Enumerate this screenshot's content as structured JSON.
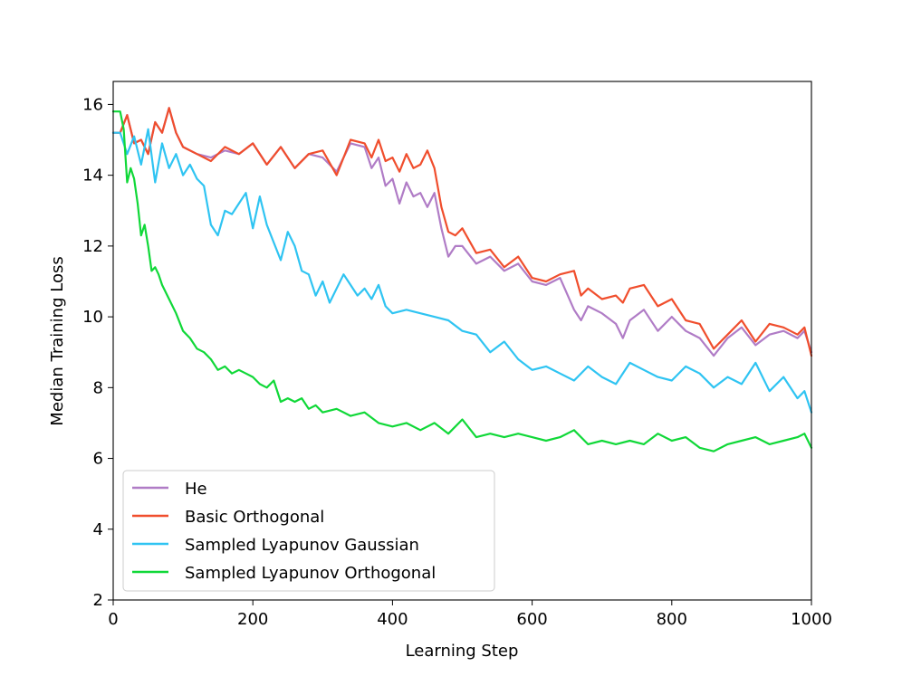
{
  "chart_data": {
    "type": "line",
    "title": "",
    "xlabel": "Learning Step",
    "ylabel": "Median Training Loss",
    "xlim": [
      0,
      1000
    ],
    "ylim": [
      2,
      16.65
    ],
    "xticks": [
      0,
      200,
      400,
      600,
      800,
      1000
    ],
    "yticks": [
      2,
      4,
      6,
      8,
      10,
      12,
      14,
      16
    ],
    "grid": false,
    "legend_position": "lower-left",
    "series": [
      {
        "name": "He",
        "color": "#b07cc6",
        "x": [
          0,
          10,
          20,
          30,
          40,
          50,
          60,
          70,
          80,
          90,
          100,
          120,
          140,
          160,
          180,
          200,
          220,
          240,
          260,
          280,
          300,
          320,
          340,
          360,
          370,
          380,
          390,
          400,
          410,
          420,
          430,
          440,
          450,
          460,
          470,
          480,
          490,
          500,
          520,
          540,
          560,
          580,
          600,
          620,
          640,
          660,
          670,
          680,
          700,
          720,
          730,
          740,
          760,
          780,
          800,
          820,
          840,
          860,
          880,
          900,
          920,
          940,
          960,
          980,
          990,
          1000
        ],
        "y": [
          15.2,
          15.2,
          15.7,
          14.9,
          15.0,
          14.6,
          15.5,
          15.2,
          15.9,
          15.2,
          14.8,
          14.6,
          14.5,
          14.7,
          14.6,
          14.9,
          14.3,
          14.8,
          14.2,
          14.6,
          14.5,
          14.1,
          14.9,
          14.8,
          14.2,
          14.5,
          13.7,
          13.9,
          13.2,
          13.8,
          13.4,
          13.5,
          13.1,
          13.5,
          12.5,
          11.7,
          12.0,
          12.0,
          11.5,
          11.7,
          11.3,
          11.5,
          11.0,
          10.9,
          11.1,
          10.2,
          9.9,
          10.3,
          10.1,
          9.8,
          9.4,
          9.9,
          10.2,
          9.6,
          10.0,
          9.6,
          9.4,
          8.9,
          9.4,
          9.7,
          9.2,
          9.5,
          9.6,
          9.4,
          9.6,
          9.0
        ]
      },
      {
        "name": "Basic Orthogonal",
        "color": "#f04e2d",
        "x": [
          0,
          10,
          20,
          30,
          40,
          50,
          60,
          70,
          80,
          90,
          100,
          120,
          140,
          160,
          180,
          200,
          220,
          240,
          260,
          280,
          300,
          320,
          340,
          360,
          370,
          380,
          390,
          400,
          410,
          420,
          430,
          440,
          450,
          460,
          470,
          480,
          490,
          500,
          520,
          540,
          560,
          580,
          600,
          620,
          640,
          660,
          670,
          680,
          700,
          720,
          730,
          740,
          760,
          780,
          800,
          820,
          840,
          860,
          880,
          900,
          920,
          940,
          960,
          980,
          990,
          1000
        ],
        "y": [
          15.2,
          15.2,
          15.7,
          14.9,
          15.0,
          14.6,
          15.5,
          15.2,
          15.9,
          15.2,
          14.8,
          14.6,
          14.4,
          14.8,
          14.6,
          14.9,
          14.3,
          14.8,
          14.2,
          14.6,
          14.7,
          14.0,
          15.0,
          14.9,
          14.5,
          15.0,
          14.4,
          14.5,
          14.1,
          14.6,
          14.2,
          14.3,
          14.7,
          14.2,
          13.1,
          12.4,
          12.3,
          12.5,
          11.8,
          11.9,
          11.4,
          11.7,
          11.1,
          11.0,
          11.2,
          11.3,
          10.6,
          10.8,
          10.5,
          10.6,
          10.4,
          10.8,
          10.9,
          10.3,
          10.5,
          9.9,
          9.8,
          9.1,
          9.5,
          9.9,
          9.3,
          9.8,
          9.7,
          9.5,
          9.7,
          8.9
        ]
      },
      {
        "name": "Sampled Lyapunov Gaussian",
        "color": "#2fc4f2",
        "x": [
          0,
          10,
          20,
          30,
          40,
          50,
          60,
          70,
          80,
          90,
          100,
          110,
          120,
          130,
          140,
          150,
          160,
          170,
          180,
          190,
          200,
          210,
          220,
          230,
          240,
          250,
          260,
          270,
          280,
          290,
          300,
          310,
          320,
          330,
          340,
          350,
          360,
          370,
          380,
          390,
          400,
          420,
          440,
          460,
          480,
          500,
          520,
          540,
          560,
          580,
          600,
          620,
          640,
          660,
          680,
          700,
          720,
          740,
          760,
          780,
          800,
          820,
          840,
          860,
          880,
          900,
          920,
          940,
          960,
          980,
          990,
          1000
        ],
        "y": [
          15.2,
          15.2,
          14.6,
          15.1,
          14.3,
          15.3,
          13.8,
          14.9,
          14.2,
          14.6,
          14.0,
          14.3,
          13.9,
          13.7,
          12.6,
          12.3,
          13.0,
          12.9,
          13.2,
          13.5,
          12.5,
          13.4,
          12.6,
          12.1,
          11.6,
          12.4,
          12.0,
          11.3,
          11.2,
          10.6,
          11.0,
          10.4,
          10.8,
          11.2,
          10.9,
          10.6,
          10.8,
          10.5,
          10.9,
          10.3,
          10.1,
          10.2,
          10.1,
          10.0,
          9.9,
          9.6,
          9.5,
          9.0,
          9.3,
          8.8,
          8.5,
          8.6,
          8.4,
          8.2,
          8.6,
          8.3,
          8.1,
          8.7,
          8.5,
          8.3,
          8.2,
          8.6,
          8.4,
          8.0,
          8.3,
          8.1,
          8.7,
          7.9,
          8.3,
          7.7,
          7.9,
          7.3
        ]
      },
      {
        "name": "Sampled Lyapunov Orthogonal",
        "color": "#10d838",
        "x": [
          0,
          5,
          10,
          15,
          20,
          25,
          30,
          35,
          40,
          45,
          50,
          55,
          60,
          65,
          70,
          80,
          90,
          100,
          110,
          120,
          130,
          140,
          150,
          160,
          170,
          180,
          190,
          200,
          210,
          220,
          230,
          240,
          250,
          260,
          270,
          280,
          290,
          300,
          320,
          340,
          360,
          380,
          400,
          420,
          440,
          460,
          480,
          500,
          520,
          540,
          560,
          580,
          600,
          620,
          640,
          660,
          680,
          700,
          720,
          740,
          760,
          780,
          800,
          820,
          840,
          860,
          880,
          900,
          920,
          940,
          960,
          980,
          990,
          1000
        ],
        "y": [
          15.8,
          15.8,
          15.8,
          15.3,
          13.8,
          14.2,
          13.9,
          13.2,
          12.3,
          12.6,
          12.0,
          11.3,
          11.4,
          11.2,
          10.9,
          10.5,
          10.1,
          9.6,
          9.4,
          9.1,
          9.0,
          8.8,
          8.5,
          8.6,
          8.4,
          8.5,
          8.4,
          8.3,
          8.1,
          8.0,
          8.2,
          7.6,
          7.7,
          7.6,
          7.7,
          7.4,
          7.5,
          7.3,
          7.4,
          7.2,
          7.3,
          7.0,
          6.9,
          7.0,
          6.8,
          7.0,
          6.7,
          7.1,
          6.6,
          6.7,
          6.6,
          6.7,
          6.6,
          6.5,
          6.6,
          6.8,
          6.4,
          6.5,
          6.4,
          6.5,
          6.4,
          6.7,
          6.5,
          6.6,
          6.3,
          6.2,
          6.4,
          6.5,
          6.6,
          6.4,
          6.5,
          6.6,
          6.7,
          6.3
        ]
      }
    ]
  }
}
